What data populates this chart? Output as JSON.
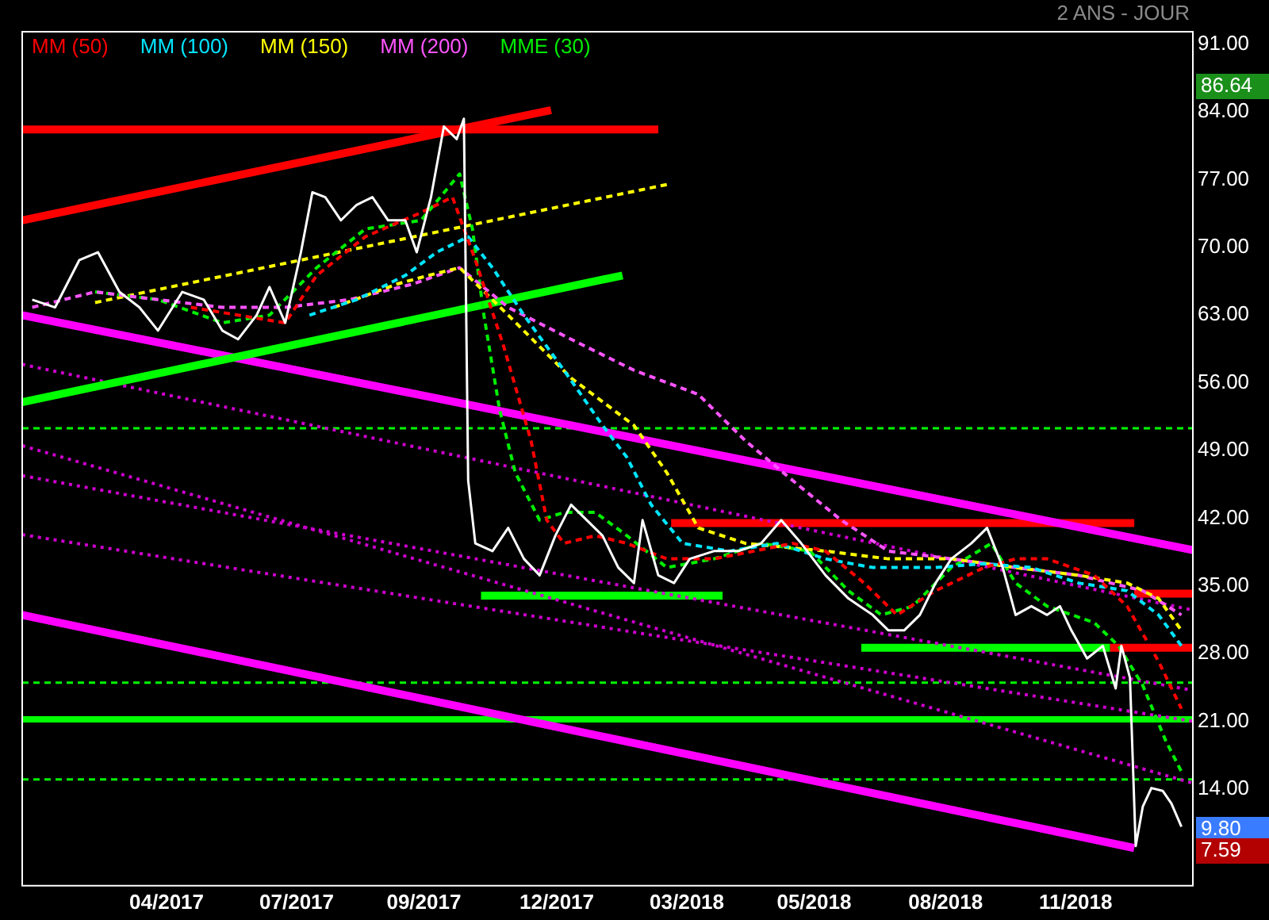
{
  "chart_data": {
    "type": "line",
    "subtitle": "2 ANS - JOUR",
    "xlim": [
      "2016-12-21",
      "2019-03-20"
    ],
    "xticks": [
      {
        "value": "2017-04-01",
        "label": "04/2017"
      },
      {
        "value": "2017-07-01",
        "label": "07/2017"
      },
      {
        "value": "2017-09-28",
        "label": "09/2017"
      },
      {
        "value": "2017-12-30",
        "label": "12/2017"
      },
      {
        "value": "2018-03-31",
        "label": "03/2018"
      },
      {
        "value": "2018-06-28",
        "label": "05/2018"
      },
      {
        "value": "2018-09-28",
        "label": "08/2018"
      },
      {
        "value": "2018-12-28",
        "label": "11/2018"
      }
    ],
    "ylim": [
      4,
      92.3
    ],
    "yticks": [
      {
        "value": 91,
        "label": "91.00"
      },
      {
        "value": 84,
        "label": "84.00"
      },
      {
        "value": 77,
        "label": "77.00"
      },
      {
        "value": 70,
        "label": "70.00"
      },
      {
        "value": 63,
        "label": "63.00"
      },
      {
        "value": 56,
        "label": "56.00"
      },
      {
        "value": 49,
        "label": "49.00"
      },
      {
        "value": 42,
        "label": "42.00"
      },
      {
        "value": 35,
        "label": "35.00"
      },
      {
        "value": 28,
        "label": "28.00"
      },
      {
        "value": 21,
        "label": "21.00"
      },
      {
        "value": 14,
        "label": "14.00"
      }
    ],
    "grid": false,
    "legend": "top left",
    "marker": "none",
    "annotations": [
      "86.64",
      "9.80",
      "7.59"
    ],
    "ref_lines": [
      {
        "axis": "y",
        "value": 51.3,
        "color": "#00ff00",
        "line_style": "dashed"
      },
      {
        "axis": "y",
        "value": 25.0,
        "color": "#00ff00",
        "line_style": "dashed"
      },
      {
        "axis": "y",
        "value": 15.0,
        "color": "#00ff00",
        "line_style": "dashed"
      },
      {
        "axis": "y",
        "value": 21.2,
        "color": "#00ff00",
        "line_style": "solid"
      }
    ],
    "series": [
      {
        "color": "#ffffff",
        "line_style": "solid",
        "x": [
          "2016-12-28",
          "2017-01-13",
          "2017-01-30",
          "2017-02-12",
          "2017-02-27",
          "2017-03-13",
          "2017-03-26",
          "2017-04-12",
          "2017-04-27",
          "2017-05-10",
          "2017-05-21",
          "2017-06-03",
          "2017-06-12",
          "2017-06-23",
          "2017-07-04",
          "2017-07-12",
          "2017-07-21",
          "2017-08-01",
          "2017-08-12",
          "2017-08-23",
          "2017-09-03",
          "2017-09-15",
          "2017-09-23",
          "2017-10-03",
          "2017-10-12",
          "2017-10-21",
          "2017-10-26",
          "2017-10-29",
          "2017-11-03",
          "2017-11-15",
          "2017-11-26",
          "2017-12-07",
          "2017-12-18",
          "2017-12-29",
          "2018-01-09",
          "2018-01-20",
          "2018-01-31",
          "2018-02-11",
          "2018-02-22",
          "2018-02-28",
          "2018-03-11",
          "2018-03-22",
          "2018-04-02",
          "2018-04-19",
          "2018-05-06",
          "2018-05-22",
          "2018-06-05",
          "2018-06-19",
          "2018-07-06",
          "2018-07-22",
          "2018-08-08",
          "2018-08-19",
          "2018-08-30",
          "2018-09-10",
          "2018-09-21",
          "2018-10-02",
          "2018-10-16",
          "2018-10-27",
          "2018-11-07",
          "2018-11-16",
          "2018-11-27",
          "2018-12-08",
          "2018-12-17",
          "2018-12-25",
          "2019-01-05",
          "2019-01-16",
          "2019-01-25",
          "2019-01-29",
          "2019-02-04",
          "2019-02-08",
          "2019-02-13",
          "2019-02-19",
          "2019-02-27",
          "2019-03-05",
          "2019-03-12"
        ],
        "values": [
          64.6,
          63.8,
          68.7,
          69.5,
          65.4,
          63.8,
          61.4,
          65.4,
          64.6,
          61.4,
          60.5,
          63.0,
          65.9,
          62.2,
          69.5,
          75.7,
          75.2,
          72.8,
          74.4,
          75.2,
          72.8,
          72.8,
          69.5,
          75.2,
          82.5,
          81.2,
          83.3,
          45.9,
          39.4,
          38.6,
          41.0,
          37.8,
          36.1,
          40.2,
          43.4,
          41.8,
          40.2,
          36.9,
          35.3,
          41.8,
          36.1,
          35.3,
          37.8,
          38.6,
          38.6,
          39.4,
          41.8,
          39.4,
          36.1,
          33.7,
          32.0,
          30.4,
          30.4,
          32.0,
          35.3,
          37.8,
          39.4,
          41.0,
          36.9,
          32.0,
          32.9,
          32.0,
          32.9,
          30.4,
          27.5,
          28.8,
          24.4,
          28.8,
          25.5,
          8.1,
          12.2,
          14.1,
          13.8,
          12.5,
          10.1
        ]
      },
      {
        "name": "MM (50)",
        "color": "#ff0000",
        "line_style": "dashed",
        "x": [
          "2017-04-18",
          "2017-05-21",
          "2017-06-23",
          "2017-07-15",
          "2017-08-18",
          "2017-09-26",
          "2017-10-18",
          "2017-11-03",
          "2017-11-23",
          "2017-12-12",
          "2017-12-23",
          "2018-01-04",
          "2018-01-26",
          "2018-02-17",
          "2018-03-17",
          "2018-04-19",
          "2018-05-17",
          "2018-06-13",
          "2018-07-06",
          "2018-08-02",
          "2018-08-25",
          "2018-09-21",
          "2018-10-25",
          "2018-11-16",
          "2018-12-08",
          "2019-01-10",
          "2019-02-02",
          "2019-02-24",
          "2019-03-12"
        ],
        "values": [
          63.8,
          63.0,
          62.2,
          67.1,
          71.1,
          73.6,
          75.2,
          68.7,
          59.7,
          50.0,
          41.8,
          39.4,
          40.2,
          39.4,
          37.8,
          37.8,
          38.6,
          39.4,
          38.6,
          35.3,
          32.0,
          34.5,
          36.9,
          37.8,
          37.8,
          36.1,
          32.9,
          27.2,
          22.3
        ]
      },
      {
        "name": "MM (100)",
        "color": "#00e5ff",
        "line_style": "dashed",
        "x": [
          "2017-07-10",
          "2017-08-12",
          "2017-09-15",
          "2017-10-07",
          "2017-10-29",
          "2017-11-15",
          "2017-12-07",
          "2018-01-04",
          "2018-01-31",
          "2018-02-17",
          "2018-03-06",
          "2018-03-28",
          "2018-04-30",
          "2018-06-02",
          "2018-07-06",
          "2018-08-08",
          "2018-09-21",
          "2018-10-25",
          "2018-11-27",
          "2018-12-30",
          "2019-02-02",
          "2019-02-24",
          "2019-03-12"
        ],
        "values": [
          63.0,
          64.6,
          67.1,
          69.5,
          71.1,
          67.9,
          63.0,
          57.3,
          51.6,
          48.3,
          43.4,
          39.4,
          38.6,
          39.4,
          37.8,
          36.9,
          36.9,
          37.3,
          36.9,
          35.3,
          34.5,
          32.0,
          28.8
        ]
      },
      {
        "name": "MM (150)",
        "color": "#ffff00",
        "line_style": "dashed",
        "x": [
          "2017-07-27",
          "2017-09-09",
          "2017-10-01",
          "2017-10-23",
          "2017-11-26",
          "2018-01-09",
          "2018-02-22",
          "2018-03-17",
          "2018-04-08",
          "2018-05-11",
          "2018-07-06",
          "2018-08-19",
          "2018-10-02",
          "2018-11-16",
          "2018-12-30",
          "2019-02-02",
          "2019-02-24",
          "2019-03-12"
        ],
        "values": [
          63.8,
          66.2,
          67.1,
          67.9,
          63.0,
          56.5,
          51.6,
          46.7,
          41.0,
          39.4,
          38.6,
          37.8,
          37.8,
          36.9,
          36.1,
          35.3,
          33.7,
          30.4
        ]
      },
      {
        "name": "MM (200)",
        "color": "#ff55ff",
        "line_style": "dashed",
        "x": [
          "2016-12-28",
          "2017-02-10",
          "2017-03-26",
          "2017-05-10",
          "2017-06-23",
          "2017-08-07",
          "2017-09-20",
          "2017-10-23",
          "2017-11-26",
          "2018-01-09",
          "2018-02-22",
          "2018-04-08",
          "2018-05-11",
          "2018-06-13",
          "2018-07-17",
          "2018-08-19",
          "2018-10-02",
          "2018-11-16",
          "2018-12-30",
          "2019-02-13",
          "2019-03-12"
        ],
        "values": [
          63.8,
          65.4,
          64.6,
          63.8,
          63.8,
          64.6,
          66.2,
          67.9,
          63.8,
          60.5,
          57.3,
          54.8,
          50.0,
          45.9,
          41.8,
          38.6,
          37.8,
          36.9,
          36.1,
          34.5,
          32.0
        ]
      },
      {
        "name": "MME (30)",
        "color": "#00ee00",
        "line_style": "dashed",
        "x": [
          "2017-02-10",
          "2017-03-26",
          "2017-05-10",
          "2017-06-12",
          "2017-07-15",
          "2017-08-18",
          "2017-09-26",
          "2017-10-23",
          "2017-11-01",
          "2017-11-09",
          "2017-11-20",
          "2017-12-01",
          "2017-12-18",
          "2018-01-04",
          "2018-01-26",
          "2018-02-17",
          "2018-03-17",
          "2018-04-19",
          "2018-05-22",
          "2018-06-25",
          "2018-07-22",
          "2018-08-14",
          "2018-09-05",
          "2018-10-02",
          "2018-10-30",
          "2018-11-16",
          "2018-12-08",
          "2019-01-10",
          "2019-01-27",
          "2019-02-13",
          "2019-03-01",
          "2019-03-12"
        ],
        "values": [
          65.4,
          64.6,
          62.2,
          63.0,
          67.9,
          71.9,
          72.8,
          77.6,
          71.9,
          63.0,
          53.2,
          46.7,
          41.8,
          42.6,
          42.6,
          40.2,
          36.9,
          37.8,
          39.4,
          38.6,
          34.5,
          32.0,
          32.9,
          36.9,
          39.4,
          35.3,
          32.9,
          31.2,
          28.8,
          24.7,
          19.0,
          15.8
        ]
      },
      {
        "color": "#ff0000",
        "line_style": "solid",
        "x": [
          "2016-12-21",
          "2017-12-26"
        ],
        "values": [
          72.8,
          84.2
        ]
      },
      {
        "color": "#ff0000",
        "line_style": "solid",
        "x": [
          "2016-12-21",
          "2018-03-11"
        ],
        "values": [
          82.2,
          82.2
        ]
      },
      {
        "color": "#ffff00",
        "line_style": "dashed",
        "x": [
          "2017-02-10",
          "2018-03-17"
        ],
        "values": [
          64.3,
          76.5
        ]
      },
      {
        "color": "#00ff00",
        "line_style": "solid",
        "x": [
          "2016-12-21",
          "2018-02-14"
        ],
        "values": [
          54.0,
          67.1
        ]
      },
      {
        "color": "#ff00ff",
        "line_style": "solid",
        "x": [
          "2016-12-21",
          "2019-03-20"
        ],
        "values": [
          63.0,
          38.7
        ]
      },
      {
        "color": "#ff00ff",
        "line_style": "solid",
        "x": [
          "2016-12-21",
          "2019-02-07"
        ],
        "values": [
          32.0,
          7.9
        ]
      },
      {
        "color": "#cc00cc",
        "line_style": "dotted",
        "x": [
          "2016-12-21",
          "2019-03-20"
        ],
        "values": [
          57.9,
          32.5
        ]
      },
      {
        "color": "#cc00cc",
        "line_style": "dotted",
        "x": [
          "2016-12-21",
          "2019-03-20"
        ],
        "values": [
          49.5,
          14.6
        ]
      },
      {
        "color": "#cc00cc",
        "line_style": "dotted",
        "x": [
          "2016-12-21",
          "2019-03-20"
        ],
        "values": [
          46.4,
          24.2
        ]
      },
      {
        "color": "#cc00cc",
        "line_style": "dotted",
        "x": [
          "2016-12-21",
          "2019-03-20"
        ],
        "values": [
          40.3,
          21.0
        ]
      },
      {
        "color": "#ff0000",
        "line_style": "solid",
        "x": [
          "2018-03-20",
          "2019-02-07"
        ],
        "values": [
          41.5,
          41.5
        ]
      },
      {
        "color": "#00ff00",
        "line_style": "solid",
        "x": [
          "2017-11-07",
          "2018-04-25"
        ],
        "values": [
          34.0,
          34.0
        ]
      },
      {
        "color": "#00ff00",
        "line_style": "solid",
        "x": [
          "2018-07-31",
          "2019-01-21"
        ],
        "values": [
          28.6,
          28.6
        ]
      },
      {
        "color": "#ff0000",
        "line_style": "solid",
        "x": [
          "2019-01-21",
          "2019-03-20"
        ],
        "values": [
          28.6,
          28.6
        ]
      },
      {
        "color": "#ff0000",
        "line_style": "solid",
        "x": [
          "2019-02-07",
          "2019-03-20"
        ],
        "values": [
          34.2,
          34.2
        ]
      }
    ]
  }
}
